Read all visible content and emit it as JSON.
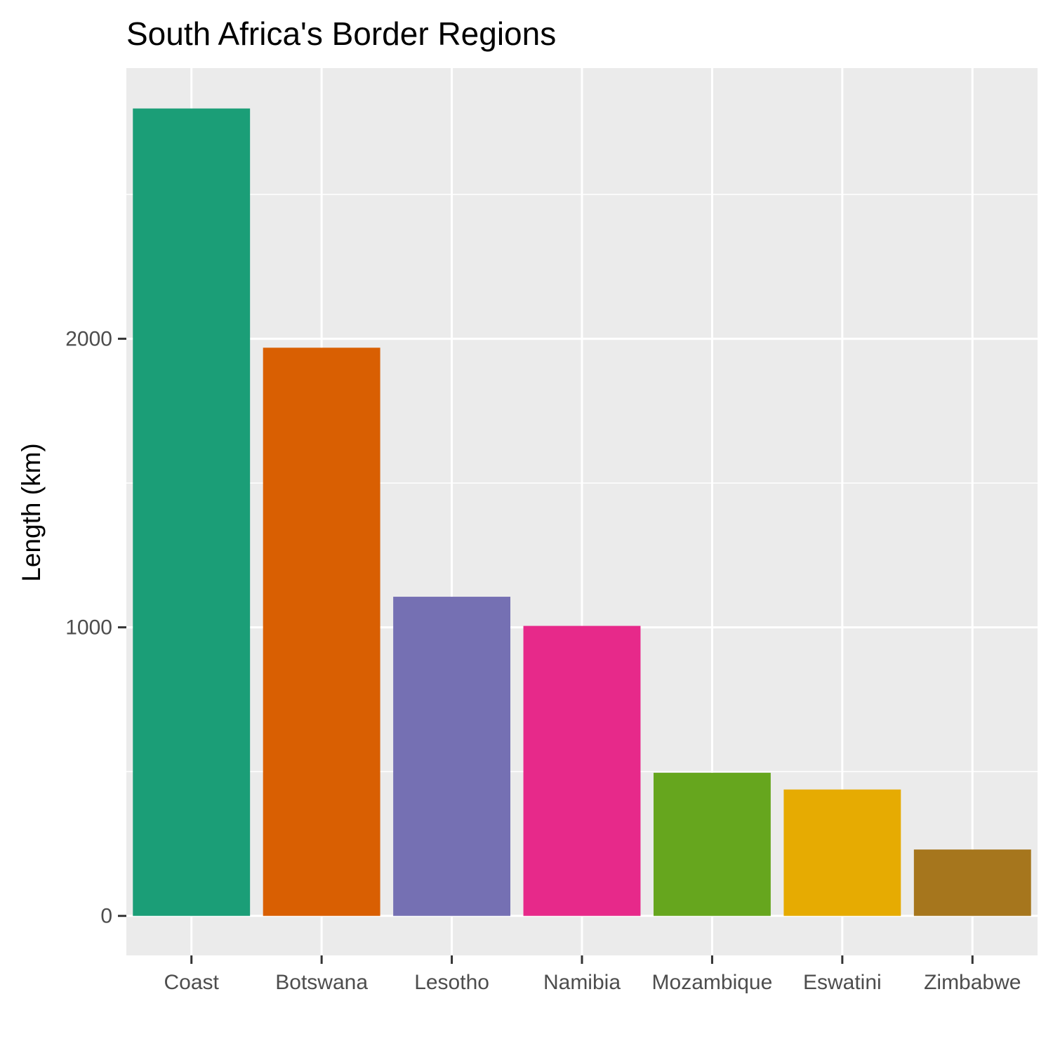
{
  "chart_data": {
    "type": "bar",
    "title": "South Africa's Border Regions",
    "xlabel": "",
    "ylabel": "Length (km)",
    "categories": [
      "Coast",
      "Botswana",
      "Lesotho",
      "Namibia",
      "Mozambique",
      "Eswatini",
      "Zimbabwe"
    ],
    "values": [
      2798,
      1969,
      1106,
      1005,
      496,
      438,
      230
    ],
    "colors": [
      "#1b9e77",
      "#d95f02",
      "#7570b3",
      "#e7298a",
      "#66a61e",
      "#e6ab02",
      "#a6761d"
    ],
    "ylim": [
      -137,
      2938
    ],
    "yticks": [
      0,
      1000,
      2000
    ],
    "yticks_minor": [
      500,
      1500,
      2500
    ],
    "grid": true,
    "background": "#ebebeb",
    "grid_color": "#ffffff",
    "legend": "none"
  }
}
